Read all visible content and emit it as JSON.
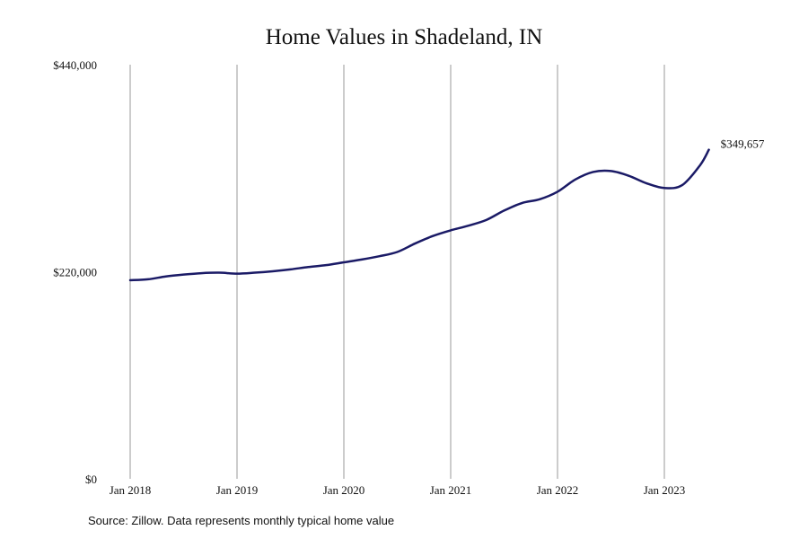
{
  "chart_data": {
    "type": "line",
    "title": "Home Values in Shadeland, IN",
    "xlabel": "",
    "ylabel": "",
    "ylim": [
      0,
      440000
    ],
    "y_ticks": [
      {
        "value": 0,
        "label": "$0"
      },
      {
        "value": 220000,
        "label": "$220,000"
      },
      {
        "value": 440000,
        "label": "$440,000"
      }
    ],
    "x_ticks": [
      {
        "value": "2018-01",
        "label": "Jan 2018"
      },
      {
        "value": "2019-01",
        "label": "Jan 2019"
      },
      {
        "value": "2020-01",
        "label": "Jan 2020"
      },
      {
        "value": "2021-01",
        "label": "Jan 2021"
      },
      {
        "value": "2022-01",
        "label": "Jan 2022"
      },
      {
        "value": "2023-01",
        "label": "Jan 2023"
      }
    ],
    "grid": "vertical",
    "series": [
      {
        "color": "#1a1a66",
        "points": [
          {
            "x": "2018-01",
            "y": 211000
          },
          {
            "x": "2018-03",
            "y": 212000
          },
          {
            "x": "2018-05",
            "y": 215000
          },
          {
            "x": "2018-07",
            "y": 217000
          },
          {
            "x": "2018-09",
            "y": 218500
          },
          {
            "x": "2018-11",
            "y": 219000
          },
          {
            "x": "2019-01",
            "y": 218000
          },
          {
            "x": "2019-03",
            "y": 219000
          },
          {
            "x": "2019-05",
            "y": 220500
          },
          {
            "x": "2019-07",
            "y": 222500
          },
          {
            "x": "2019-09",
            "y": 225000
          },
          {
            "x": "2019-11",
            "y": 227000
          },
          {
            "x": "2020-01",
            "y": 230000
          },
          {
            "x": "2020-03",
            "y": 233000
          },
          {
            "x": "2020-05",
            "y": 236500
          },
          {
            "x": "2020-07",
            "y": 241000
          },
          {
            "x": "2020-09",
            "y": 250000
          },
          {
            "x": "2020-11",
            "y": 258000
          },
          {
            "x": "2021-01",
            "y": 264000
          },
          {
            "x": "2021-03",
            "y": 269000
          },
          {
            "x": "2021-05",
            "y": 275000
          },
          {
            "x": "2021-07",
            "y": 285000
          },
          {
            "x": "2021-09",
            "y": 293000
          },
          {
            "x": "2021-11",
            "y": 297000
          },
          {
            "x": "2022-01",
            "y": 305000
          },
          {
            "x": "2022-03",
            "y": 318000
          },
          {
            "x": "2022-05",
            "y": 326000
          },
          {
            "x": "2022-07",
            "y": 327000
          },
          {
            "x": "2022-09",
            "y": 322000
          },
          {
            "x": "2022-11",
            "y": 314000
          },
          {
            "x": "2023-01",
            "y": 309000
          },
          {
            "x": "2023-03",
            "y": 312000
          },
          {
            "x": "2023-05",
            "y": 333000
          },
          {
            "x": "2023-06",
            "y": 349657
          }
        ],
        "end_label": "$349,657"
      }
    ]
  },
  "source_note": "Source: Zillow. Data represents monthly typical home value"
}
